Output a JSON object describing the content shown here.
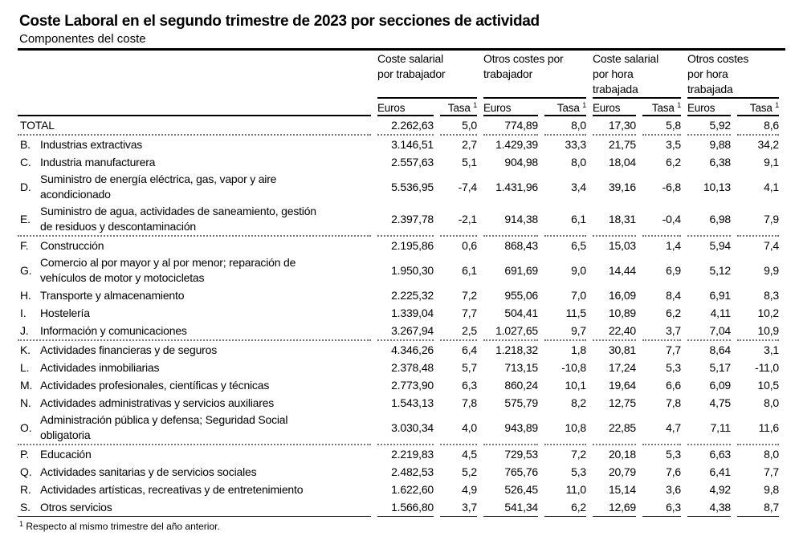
{
  "title": "Coste Laboral en el segundo trimestre de 2023 por secciones de actividad",
  "subtitle": "Componentes del coste",
  "groups": [
    [
      "Coste salarial",
      "por trabajador"
    ],
    [
      "Otros costes por",
      "trabajador"
    ],
    [
      "Coste salarial",
      "por hora",
      "trabajada"
    ],
    [
      "Otros costes",
      "por hora",
      "trabajada"
    ]
  ],
  "sub": {
    "euros": "Euros",
    "tasa": "Tasa",
    "sup": "1"
  },
  "rows": [
    {
      "code": "",
      "label": [
        "TOTAL"
      ],
      "v": [
        "2.262,63",
        "5,0",
        "774,89",
        "8,0",
        "17,30",
        "5,8",
        "5,92",
        "8,6"
      ]
    },
    {
      "code": "B.",
      "label": [
        "Industrias extractivas"
      ],
      "v": [
        "3.146,51",
        "2,7",
        "1.429,39",
        "33,3",
        "21,75",
        "3,5",
        "9,88",
        "34,2"
      ]
    },
    {
      "code": "C.",
      "label": [
        "Industria manufacturera"
      ],
      "v": [
        "2.557,63",
        "5,1",
        "904,98",
        "8,0",
        "18,04",
        "6,2",
        "6,38",
        "9,1"
      ]
    },
    {
      "code": "D.",
      "label": [
        "Suministro de energía eléctrica, gas, vapor y aire",
        "acondicionado"
      ],
      "v": [
        "5.536,95",
        "-7,4",
        "1.431,96",
        "3,4",
        "39,16",
        "-6,8",
        "10,13",
        "4,1"
      ]
    },
    {
      "code": "E.",
      "label": [
        "Suministro de agua, actividades de saneamiento, gestión",
        "de residuos y descontaminación"
      ],
      "v": [
        "2.397,78",
        "-2,1",
        "914,38",
        "6,1",
        "18,31",
        "-0,4",
        "6,98",
        "7,9"
      ]
    },
    {
      "code": "F.",
      "label": [
        "Construcción"
      ],
      "v": [
        "2.195,86",
        "0,6",
        "868,43",
        "6,5",
        "15,03",
        "1,4",
        "5,94",
        "7,4"
      ]
    },
    {
      "code": "G.",
      "label": [
        "Comercio al por mayor y al por menor; reparación de",
        "vehículos de motor y motocicletas"
      ],
      "v": [
        "1.950,30",
        "6,1",
        "691,69",
        "9,0",
        "14,44",
        "6,9",
        "5,12",
        "9,9"
      ]
    },
    {
      "code": "H.",
      "label": [
        "Transporte y almacenamiento"
      ],
      "v": [
        "2.225,32",
        "7,2",
        "955,06",
        "7,0",
        "16,09",
        "8,4",
        "6,91",
        "8,3"
      ]
    },
    {
      "code": "I.",
      "label": [
        "Hostelería"
      ],
      "v": [
        "1.339,04",
        "7,7",
        "504,41",
        "11,5",
        "10,89",
        "6,2",
        "4,11",
        "10,2"
      ]
    },
    {
      "code": "J.",
      "label": [
        "Información y comunicaciones"
      ],
      "v": [
        "3.267,94",
        "2,5",
        "1.027,65",
        "9,7",
        "22,40",
        "3,7",
        "7,04",
        "10,9"
      ]
    },
    {
      "code": "K.",
      "label": [
        "Actividades financieras y de seguros"
      ],
      "v": [
        "4.346,26",
        "6,4",
        "1.218,32",
        "1,8",
        "30,81",
        "7,7",
        "8,64",
        "3,1"
      ]
    },
    {
      "code": "L.",
      "label": [
        "Actividades inmobiliarias"
      ],
      "v": [
        "2.378,48",
        "5,7",
        "713,15",
        "-10,8",
        "17,24",
        "5,3",
        "5,17",
        "-11,0"
      ]
    },
    {
      "code": "M.",
      "label": [
        "Actividades profesionales, científicas y técnicas"
      ],
      "v": [
        "2.773,90",
        "6,3",
        "860,24",
        "10,1",
        "19,64",
        "6,6",
        "6,09",
        "10,5"
      ]
    },
    {
      "code": "N.",
      "label": [
        "Actividades administrativas y servicios auxiliares"
      ],
      "v": [
        "1.543,13",
        "7,8",
        "575,79",
        "8,2",
        "12,75",
        "7,8",
        "4,75",
        "8,0"
      ]
    },
    {
      "code": "O.",
      "label": [
        "Administración pública y defensa; Seguridad Social",
        "obligatoria"
      ],
      "v": [
        "3.030,34",
        "4,0",
        "943,89",
        "10,8",
        "22,85",
        "4,7",
        "7,11",
        "11,6"
      ]
    },
    {
      "code": "P.",
      "label": [
        "Educación"
      ],
      "v": [
        "2.219,83",
        "4,5",
        "729,53",
        "7,2",
        "20,18",
        "5,3",
        "6,63",
        "8,0"
      ]
    },
    {
      "code": "Q.",
      "label": [
        "Actividades sanitarias y de servicios sociales"
      ],
      "v": [
        "2.482,53",
        "5,2",
        "765,76",
        "5,3",
        "20,79",
        "7,6",
        "6,41",
        "7,7"
      ]
    },
    {
      "code": "R.",
      "label": [
        "Actividades artísticas, recreativas y de entretenimiento"
      ],
      "v": [
        "1.622,60",
        "4,9",
        "526,45",
        "11,0",
        "15,14",
        "3,6",
        "4,92",
        "9,8"
      ]
    },
    {
      "code": "S.",
      "label": [
        "Otros servicios"
      ],
      "v": [
        "1.566,80",
        "3,7",
        "541,34",
        "6,2",
        "12,69",
        "6,3",
        "4,38",
        "8,7"
      ]
    }
  ],
  "footnote": {
    "sup": "1",
    "text": " Respecto al mismo trimestre del año anterior."
  }
}
